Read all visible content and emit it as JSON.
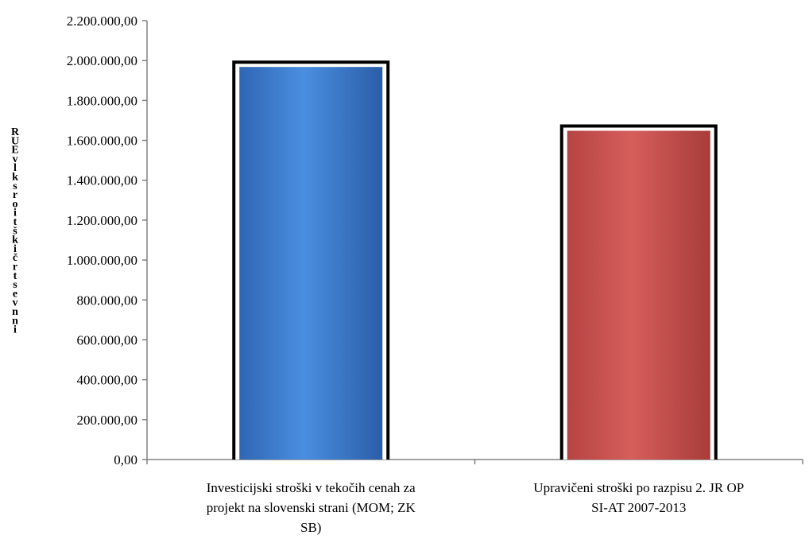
{
  "chart_data": {
    "type": "bar",
    "title": "",
    "xlabel": "",
    "ylabel": "RUE vlk sroi tšk ičrtsevn ni",
    "ylim": [
      0,
      2200000
    ],
    "y_ticks": [
      {
        "value": 0,
        "label": "0,00"
      },
      {
        "value": 200000,
        "label": "200.000,00"
      },
      {
        "value": 400000,
        "label": "400.000,00"
      },
      {
        "value": 600000,
        "label": "600.000,00"
      },
      {
        "value": 800000,
        "label": "800.000,00"
      },
      {
        "value": 1000000,
        "label": "1.000.000,00"
      },
      {
        "value": 1200000,
        "label": "1.200.000,00"
      },
      {
        "value": 1400000,
        "label": "1.400.000,00"
      },
      {
        "value": 1600000,
        "label": "1.600.000,00"
      },
      {
        "value": 1800000,
        "label": "1.800.000,00"
      },
      {
        "value": 2000000,
        "label": "2.000.000,00"
      },
      {
        "value": 2200000,
        "label": "2.200.000,00"
      }
    ],
    "categories": [
      {
        "label_lines": [
          "Investicijski stroški v tekočih cenah za",
          "projekt na slovenski strani (MOM; ZK",
          "SB)"
        ],
        "value": 1980000,
        "color": "#3f7fd3"
      },
      {
        "label_lines": [
          "Upravičeni stroški po razpisu 2. JR OP",
          "SI-AT 2007-2013"
        ],
        "value": 1660000,
        "color": "#c9514f"
      }
    ],
    "grid": false,
    "legend": "none"
  }
}
